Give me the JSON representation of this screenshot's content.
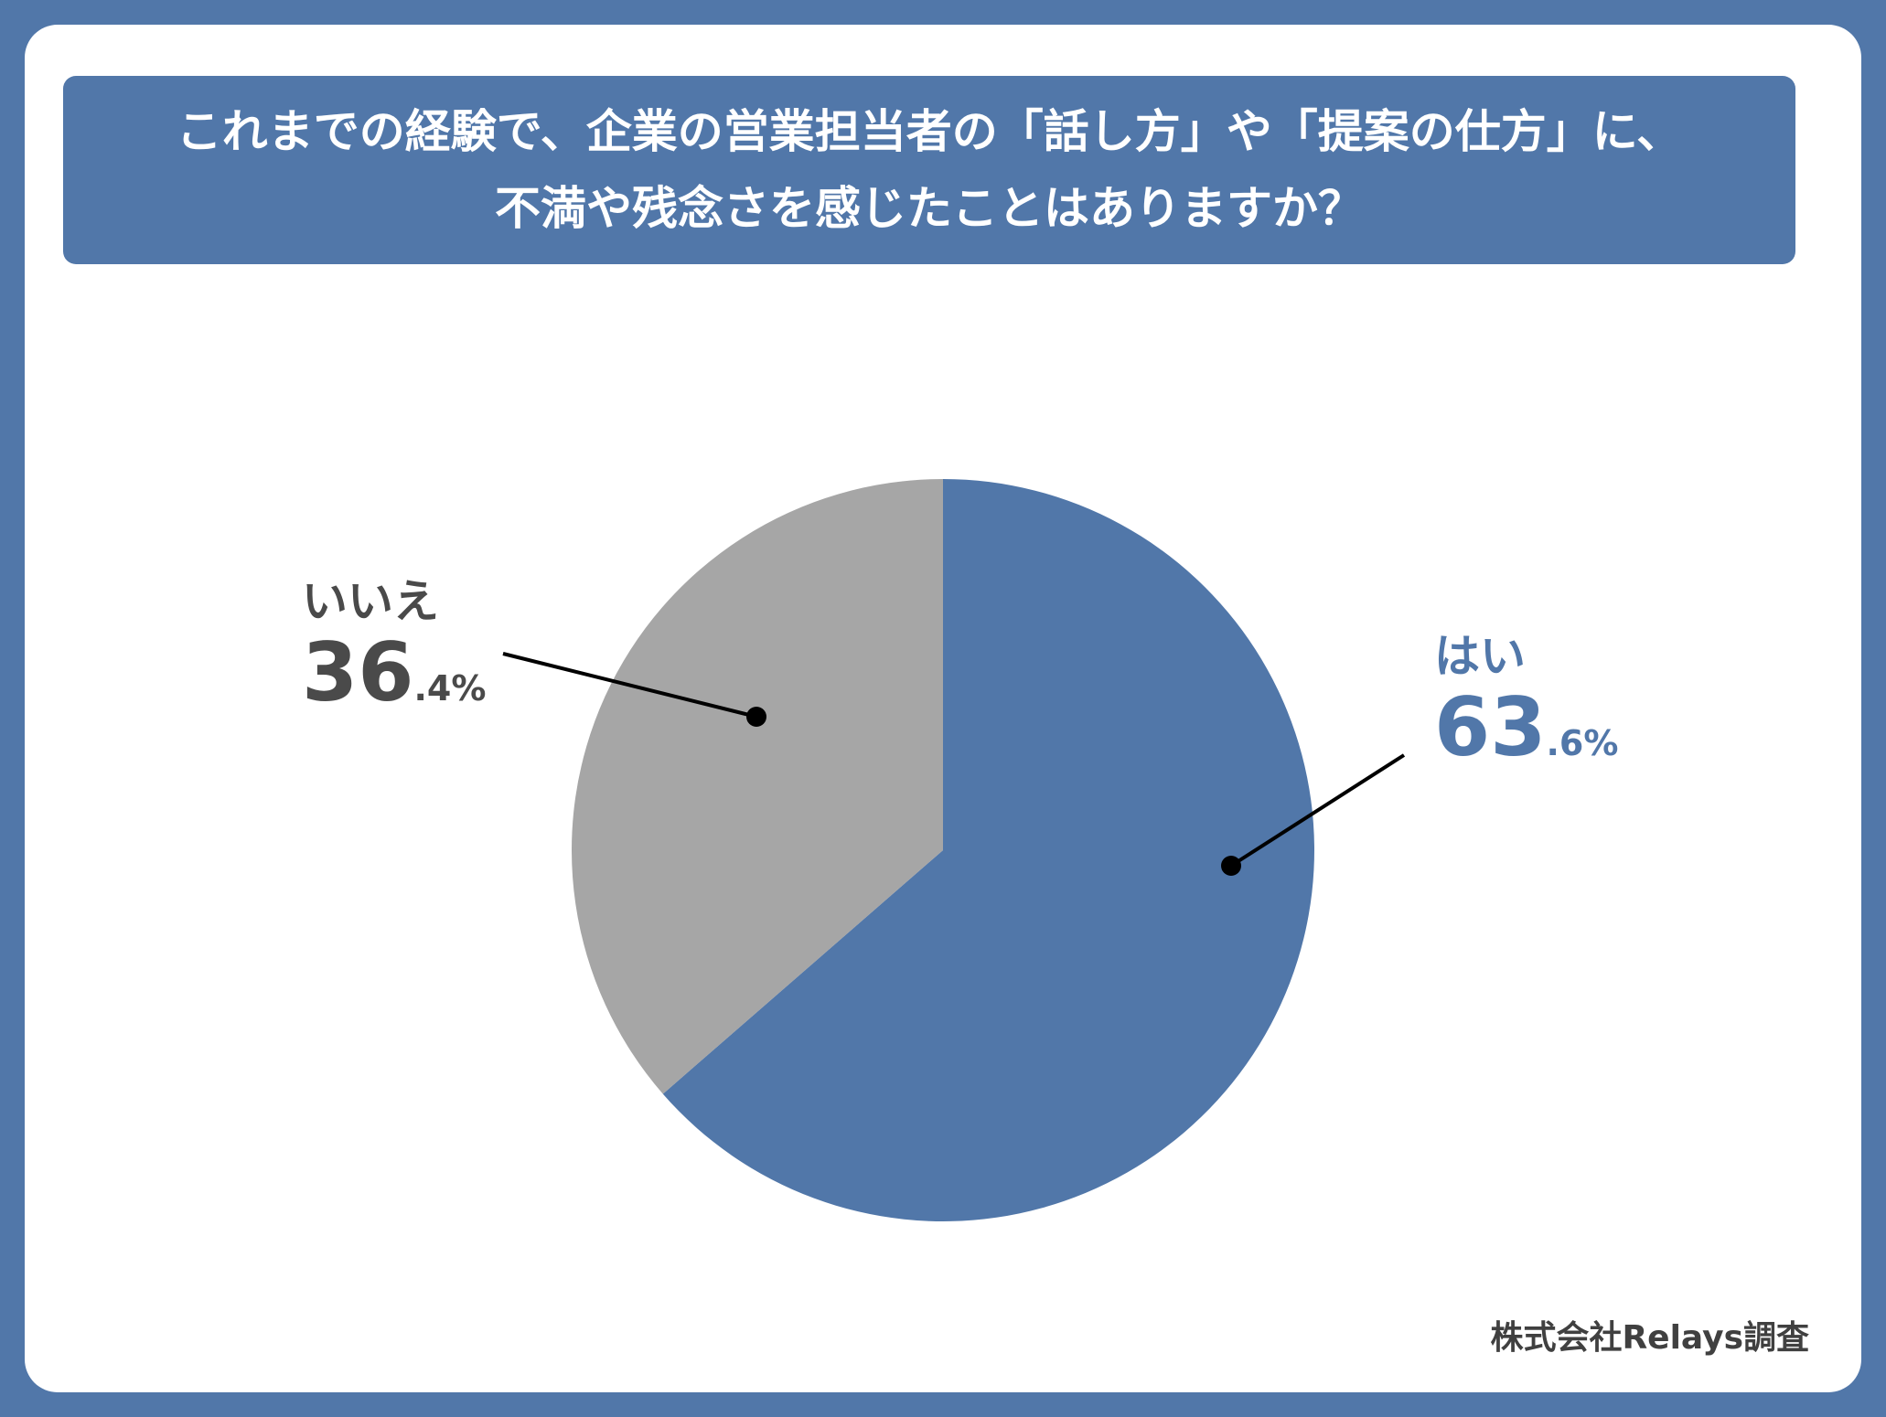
{
  "title": {
    "line1": "これまでの経験で、企業の営業担当者の「話し方」や「提案の仕方」に、",
    "line2": "不満や残念さを感じたことはありますか？"
  },
  "chart_data": {
    "type": "pie",
    "slices": [
      {
        "label": "はい",
        "value": 63.6,
        "value_int": "63",
        "value_dec": ".6%",
        "color": "#5177a9"
      },
      {
        "label": "いいえ",
        "value": 36.4,
        "value_int": "36",
        "value_dec": ".4%",
        "color": "#a6a6a6"
      }
    ],
    "start": "top",
    "direction": "clockwise"
  },
  "source": "株式会社Relays調査",
  "colors": {
    "accent": "#5177a9",
    "gray": "#a6a6a6",
    "dark_text": "#4a4a4a"
  }
}
